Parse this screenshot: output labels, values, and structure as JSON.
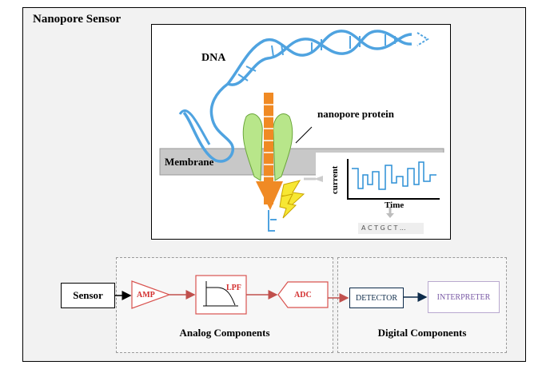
{
  "title": "Nanopore Sensor",
  "illustration": {
    "dna_label": "DNA",
    "protein_label": "nanopore protein",
    "membrane_label": "Membrane",
    "current_label": "current",
    "time_label": "Time",
    "sequence_label": "A C T G C T ..."
  },
  "pipeline": {
    "sensor": "Sensor",
    "amp": "AMP",
    "lpf": "LPF",
    "adc": "ADC",
    "detector": "DETECTOR",
    "interpreter": "INTERPRETER",
    "analog_caption": "Analog Components",
    "digital_caption": "Digital Components"
  },
  "colors": {
    "dna": "#4fa3e0",
    "protein": "#b8e68a",
    "strand": "#f08a24",
    "analog_stage": "#d9534f",
    "detector": "#0d2b4a",
    "interpreter": "#7a5aa6"
  }
}
